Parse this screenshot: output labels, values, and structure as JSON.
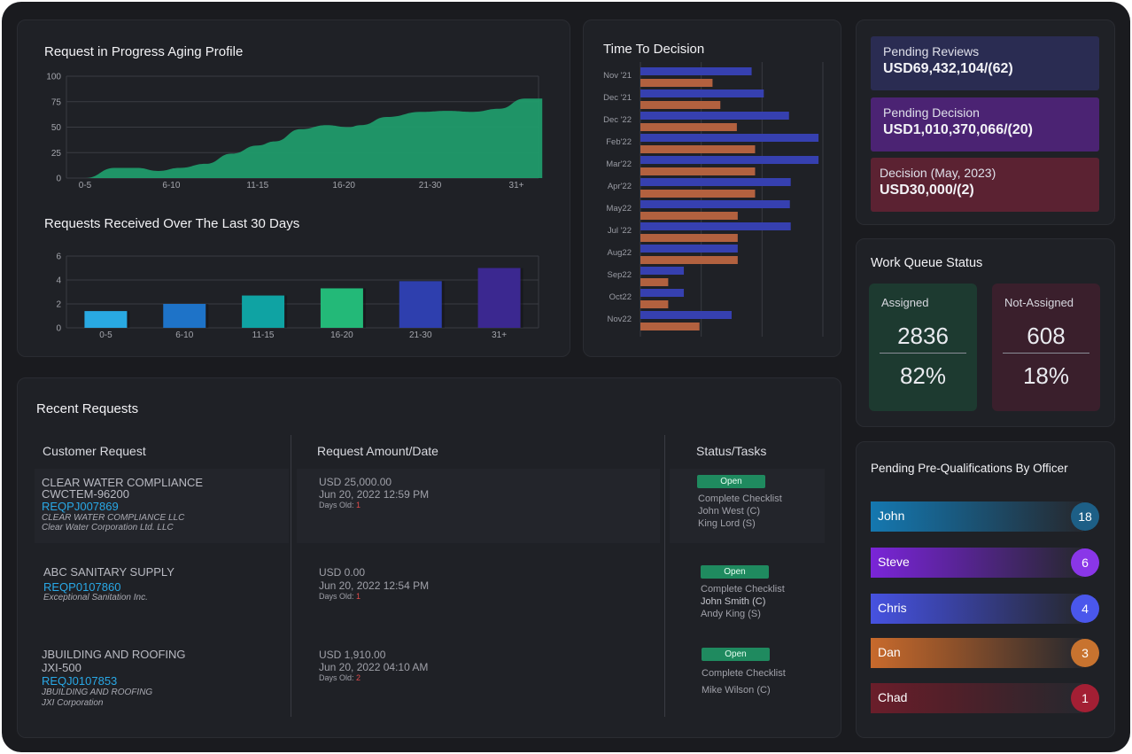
{
  "aging": {
    "title": "Request in Progress Aging Profile",
    "chart_data": {
      "type": "area",
      "title": "Request in Progress Aging Profile",
      "categories": [
        "0-5",
        "6-10",
        "11-15",
        "16-20",
        "21-30",
        "31+"
      ],
      "yticks": [
        0,
        25,
        50,
        75,
        100
      ],
      "ylim": [
        0,
        100
      ],
      "grid": true,
      "color": "#1f9e6c",
      "series": [
        {
          "points": [
            [
              0.0,
              0
            ],
            [
              0.35,
              10
            ],
            [
              0.6,
              10
            ],
            [
              0.85,
              7
            ],
            [
              1.1,
              10
            ],
            [
              1.4,
              14
            ],
            [
              1.7,
              24
            ],
            [
              2.0,
              32
            ],
            [
              2.2,
              36
            ],
            [
              2.5,
              48
            ],
            [
              2.8,
              52
            ],
            [
              3.05,
              50
            ],
            [
              3.2,
              52
            ],
            [
              3.5,
              60
            ],
            [
              3.9,
              65
            ],
            [
              4.2,
              66
            ],
            [
              4.5,
              65
            ],
            [
              4.8,
              68
            ],
            [
              5.1,
              78
            ],
            [
              5.3,
              78
            ]
          ]
        }
      ]
    }
  },
  "received": {
    "title": "Requests Received Over The Last 30 Days",
    "chart_data": {
      "type": "bar",
      "title": "Requests Received Over The Last 30 Days",
      "categories": [
        "0-5",
        "6-10",
        "11-15",
        "16-20",
        "21-30",
        "31+"
      ],
      "values": [
        1.4,
        2.0,
        2.7,
        3.3,
        3.9,
        5.0
      ],
      "colors": [
        "#29a9e2",
        "#1e73c8",
        "#0fa3a3",
        "#23b978",
        "#2e3fae",
        "#3b2890"
      ],
      "yticks": [
        0,
        2,
        4,
        6
      ],
      "ylim": [
        0,
        6
      ],
      "grid": true
    }
  },
  "decision": {
    "title": "Time To Decision",
    "chart_data": {
      "type": "bar",
      "orientation": "horizontal",
      "title": "Time To Decision",
      "categories": [
        "Nov '21",
        "Dec '21",
        "Dec '22",
        "Feb'22",
        "Mar'22",
        "Apr'22",
        "May22",
        "Jul '22",
        "Aug22",
        "Sep22",
        "Oct22",
        "Nov22"
      ],
      "series": [
        {
          "color": "#3640b0",
          "values": [
            128,
            142,
            171,
            205,
            205,
            173,
            172,
            173,
            112,
            50,
            50,
            105
          ]
        },
        {
          "color": "#b2613f",
          "values": [
            83,
            92,
            111,
            132,
            132,
            132,
            112,
            112,
            112,
            32,
            32,
            68
          ]
        }
      ],
      "xlim": [
        0,
        210
      ],
      "grid": true
    }
  },
  "summary": {
    "cards": [
      {
        "label": "Pending Reviews",
        "value": "USD69,432,104/(62)",
        "color": "#2a2c52"
      },
      {
        "label": "Pending Decision",
        "value": "USD1,010,370,066/(20)",
        "color": "#4b2373"
      },
      {
        "label": "Decision (May, 2023)",
        "value": "USD30,000/(2)",
        "color": "#5b2232"
      }
    ]
  },
  "workqueue": {
    "title": "Work Queue Status",
    "assigned": {
      "label": "Assigned",
      "count": "2836",
      "pct": "82%",
      "color": "#1d3a30"
    },
    "notassigned": {
      "label": "Not-Assigned",
      "count": "608",
      "pct": "18%",
      "color": "#3a1f2c"
    }
  },
  "officers": {
    "title": "Pending Pre-Qualifications By Officer",
    "items": [
      {
        "name": "John",
        "count": "18",
        "color": "#1578b0",
        "badge": "#1d5f86"
      },
      {
        "name": "Steve",
        "count": "6",
        "color": "#7a25d8",
        "badge": "#8a36e8"
      },
      {
        "name": "Chris",
        "count": "4",
        "color": "#4652e0",
        "badge": "#4a57ec"
      },
      {
        "name": "Dan",
        "count": "3",
        "color": "#c86a2c",
        "badge": "#c8732f"
      },
      {
        "name": "Chad",
        "count": "1",
        "color": "#6a1e2a",
        "badge": "#a31f34"
      }
    ]
  },
  "recent": {
    "title": "Recent Requests",
    "headers": [
      "Customer Request",
      "Request Amount/Date",
      "Status/Tasks"
    ],
    "rows": [
      {
        "name": "CLEAR WATER COMPLIANCE",
        "code": "CWCTEM-96200",
        "ref": "REQPJ007869",
        "corp1": "CLEAR WATER COMPLIANCE LLC",
        "corp2": "Clear Water Corporation Ltd. LLC",
        "amount": "USD 25,000.00",
        "date": "Jun 20, 2022 12:59 PM",
        "days_label": "Days Old:",
        "days": "1",
        "status": "Open",
        "tasks": [
          "Complete Checklist",
          "John West (C)",
          "King Lord (S)"
        ]
      },
      {
        "name": "ABC SANITARY SUPPLY",
        "ref": "REQP0107860",
        "corp1": "Exceptional Sanitation Inc.",
        "amount": "USD 0.00",
        "date": "Jun 20, 2022 12:54 PM",
        "days_label": "Days Old:",
        "days": "1",
        "status": "Open",
        "tasks": [
          "Complete Checklist",
          "John Smith (C)",
          "Andy King (S)"
        ]
      },
      {
        "name": "JBUILDING AND ROOFING",
        "code": "JXI-500",
        "ref": "REQJ0107853",
        "corp1": "JBUILDING AND ROOFING",
        "corp2": "JXI Corporation",
        "amount": "USD 1,910.00",
        "date": "Jun 20, 2022 04:10 AM",
        "days_label": "Days Old:",
        "days": "2",
        "status": "Open",
        "tasks": [
          "Complete Checklist",
          "Mike Wilson (C)"
        ]
      }
    ]
  }
}
